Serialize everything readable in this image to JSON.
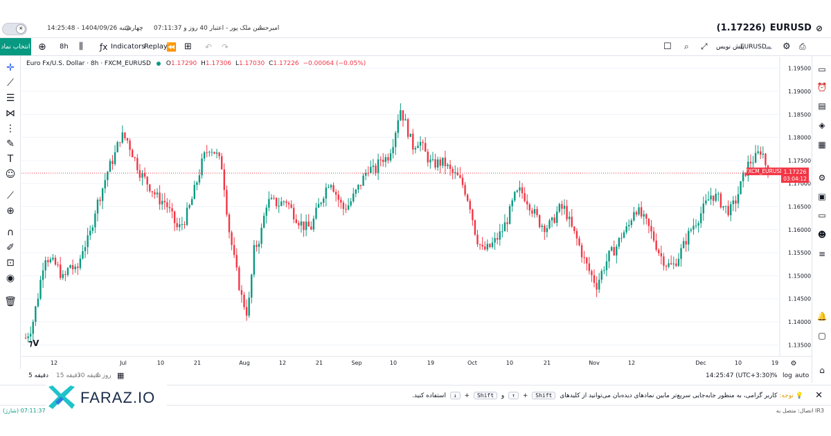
{
  "header": {
    "symbol": "EURUSD",
    "price_paren": "(1.17226)",
    "user": "امیرحسین ملک پور - اعتبار 40 روز و 07:11:37",
    "datetime": "چهارشنبه 1404/09/26 - 14:25:48"
  },
  "toolbar": {
    "pick_symbol": "انتخاب نماد",
    "interval": "8h",
    "indicators": "Indicators",
    "replay": "Replay",
    "pre_market": "پیش نویس",
    "symbol_label": "EURUSD"
  },
  "legend": {
    "title": "Euro Fx/U.S. Dollar · 8h · FXCM_EURUSD",
    "o_label": "O",
    "o": "1.17290",
    "h_label": "H",
    "h": "1.17306",
    "l_label": "L",
    "l": "1.17030",
    "c_label": "C",
    "c": "1.17226",
    "change": "−0.00064 (−0.05%)"
  },
  "price_tag": {
    "name": "FXCM_EURUSD",
    "price": "1.17226",
    "countdown": "03:04:12"
  },
  "chart_data": {
    "type": "candlestick",
    "y_ticks": [
      "1.19500",
      "1.19000",
      "1.18500",
      "1.18000",
      "1.17500",
      "1.17000",
      "1.16500",
      "1.16000",
      "1.15500",
      "1.15000",
      "1.14500",
      "1.14000",
      "1.13500"
    ],
    "x_ticks": [
      "12",
      "Jul",
      "10",
      "21",
      "Aug",
      "12",
      "21",
      "Sep",
      "10",
      "19",
      "Oct",
      "10",
      "21",
      "Nov",
      "12",
      "Dec",
      "10",
      "19"
    ],
    "ylim": [
      1.1325,
      1.1975
    ],
    "last_price": 1.17226,
    "close_path": [
      1.1365,
      1.139,
      1.146,
      1.1545,
      1.153,
      1.152,
      1.149,
      1.1525,
      1.1505,
      1.156,
      1.158,
      1.1645,
      1.1685,
      1.173,
      1.176,
      1.1805,
      1.1795,
      1.176,
      1.1725,
      1.1705,
      1.1685,
      1.1665,
      1.166,
      1.163,
      1.16,
      1.162,
      1.1655,
      1.1705,
      1.1755,
      1.178,
      1.1765,
      1.1735,
      1.1605,
      1.1525,
      1.1455,
      1.1415,
      1.1555,
      1.1585,
      1.166,
      1.166,
      1.1655,
      1.1665,
      1.164,
      1.162,
      1.1605,
      1.1605,
      1.1645,
      1.168,
      1.171,
      1.1675,
      1.1645,
      1.1655,
      1.168,
      1.1705,
      1.1735,
      1.1725,
      1.1755,
      1.1755,
      1.1795,
      1.1865,
      1.1825,
      1.178,
      1.1795,
      1.1765,
      1.174,
      1.1745,
      1.1745,
      1.1725,
      1.1715,
      1.1695,
      1.1655,
      1.1585,
      1.1555,
      1.156,
      1.1575,
      1.1595,
      1.1625,
      1.167,
      1.1685,
      1.1665,
      1.164,
      1.1615,
      1.1605,
      1.1615,
      1.1645,
      1.1645,
      1.1605,
      1.1575,
      1.1535,
      1.1505,
      1.148,
      1.1515,
      1.1545,
      1.156,
      1.159,
      1.1605,
      1.165,
      1.163,
      1.161,
      1.158,
      1.1545,
      1.1525,
      1.152,
      1.1545,
      1.1575,
      1.1605,
      1.1625,
      1.165,
      1.1675,
      1.167,
      1.165,
      1.164,
      1.1665,
      1.171,
      1.1745,
      1.1755,
      1.1775,
      1.17226
    ]
  },
  "bottom": {
    "ranges": [
      "5 دقیقه",
      "1 روز",
      "30 دقیقه",
      "15 دقیقه"
    ],
    "time": "14:25:47 (UTC+3:30)",
    "pct": "%",
    "log": "log",
    "auto": "auto"
  },
  "notice": {
    "prefix": "توجه:",
    "text": "کاربر گرامی، به منظور جابه‌جایی سریع‌تر مابین نمادهای دیده‌بان می‌توانید از کلیدهای",
    "key_shift": "Shift",
    "plus": "+",
    "key_up": "↑",
    "and": "و",
    "key_down": "↓",
    "suffix": "استفاده کنید."
  },
  "status": {
    "connection": "اتصال: متصل به IR3",
    "credit": "اعتبار: 40 روز و 07:11:37 (شارژ)"
  },
  "logo": {
    "text": "FARAZ.IO"
  },
  "colors": {
    "up": "#089981",
    "down": "#f23645",
    "accent": "#2962ff"
  }
}
